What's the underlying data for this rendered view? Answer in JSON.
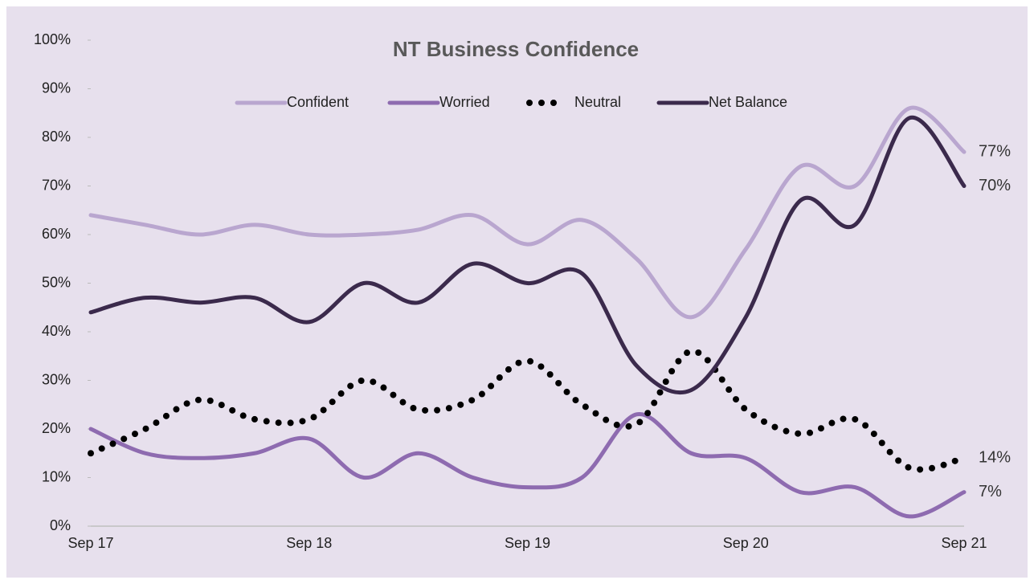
{
  "chart_data": {
    "type": "line",
    "title": "NT Business Confidence",
    "categories": [
      "Sep 17",
      null,
      null,
      null,
      "Sep 18",
      null,
      null,
      null,
      "Sep 19",
      null,
      null,
      null,
      "Sep 20",
      null,
      null,
      null,
      "Sep 21"
    ],
    "series": [
      {
        "name": "Confident",
        "color": "#b9a6cf",
        "style": "solid",
        "values": [
          64,
          62,
          60,
          62,
          60,
          60,
          61,
          64,
          58,
          63,
          55,
          43,
          57,
          74,
          70,
          86,
          77
        ],
        "value_labels": [
          null,
          null,
          null,
          null,
          null,
          null,
          null,
          null,
          null,
          null,
          null,
          null,
          null,
          null,
          null,
          null,
          "77%"
        ]
      },
      {
        "name": "Worried",
        "color": "#8e6bb0",
        "style": "solid",
        "values": [
          20,
          15,
          14,
          15,
          18,
          10,
          15,
          10,
          8,
          10,
          23,
          15,
          14,
          7,
          8,
          2,
          7
        ],
        "value_labels": [
          null,
          null,
          null,
          null,
          null,
          null,
          null,
          null,
          null,
          null,
          null,
          null,
          null,
          null,
          null,
          null,
          "7%"
        ]
      },
      {
        "name": "Neutral",
        "color": "#000000",
        "style": "dotted",
        "values": [
          15,
          20,
          26,
          22,
          22,
          30,
          24,
          26,
          34,
          25,
          21,
          36,
          24,
          19,
          22,
          12,
          14
        ],
        "value_labels": [
          null,
          null,
          null,
          null,
          null,
          null,
          null,
          null,
          null,
          null,
          null,
          null,
          null,
          null,
          null,
          null,
          "14%"
        ]
      },
      {
        "name": "Net Balance",
        "color": "#3b2a4c",
        "style": "solid",
        "values": [
          44,
          47,
          46,
          47,
          42,
          50,
          46,
          54,
          50,
          52,
          33,
          28,
          43,
          67,
          62,
          84,
          70
        ],
        "value_labels": [
          null,
          null,
          null,
          null,
          null,
          null,
          null,
          null,
          null,
          null,
          null,
          null,
          null,
          null,
          null,
          null,
          "70%"
        ]
      }
    ],
    "ylim": [
      0,
      100
    ],
    "yticks": [
      {
        "value": 0,
        "label": "0%"
      },
      {
        "value": 10,
        "label": "10%"
      },
      {
        "value": 20,
        "label": "20%"
      },
      {
        "value": 30,
        "label": "30%"
      },
      {
        "value": 40,
        "label": "40%"
      },
      {
        "value": 50,
        "label": "50%"
      },
      {
        "value": 60,
        "label": "60%"
      },
      {
        "value": 70,
        "label": "70%"
      },
      {
        "value": 80,
        "label": "80%"
      },
      {
        "value": 90,
        "label": "90%"
      },
      {
        "value": 100,
        "label": "100%"
      }
    ],
    "legend": "top"
  }
}
